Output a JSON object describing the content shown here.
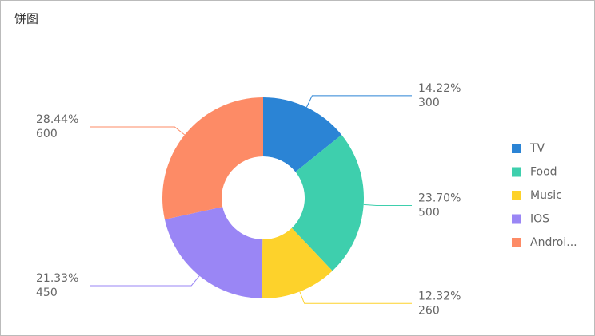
{
  "chart_data": {
    "type": "donut",
    "title": "饼图",
    "categories": [
      "TV",
      "Food",
      "Music",
      "IOS",
      "Androi..."
    ],
    "series": [
      {
        "values": [
          300,
          500,
          260,
          450,
          600
        ],
        "percent_labels": [
          "14.22%",
          "23.70%",
          "12.32%",
          "21.33%",
          "28.44%"
        ]
      }
    ],
    "colors": [
      "#2b84d5",
      "#3ecfad",
      "#fdd22b",
      "#9a86f5",
      "#fd8b66"
    ],
    "legend": "right"
  }
}
